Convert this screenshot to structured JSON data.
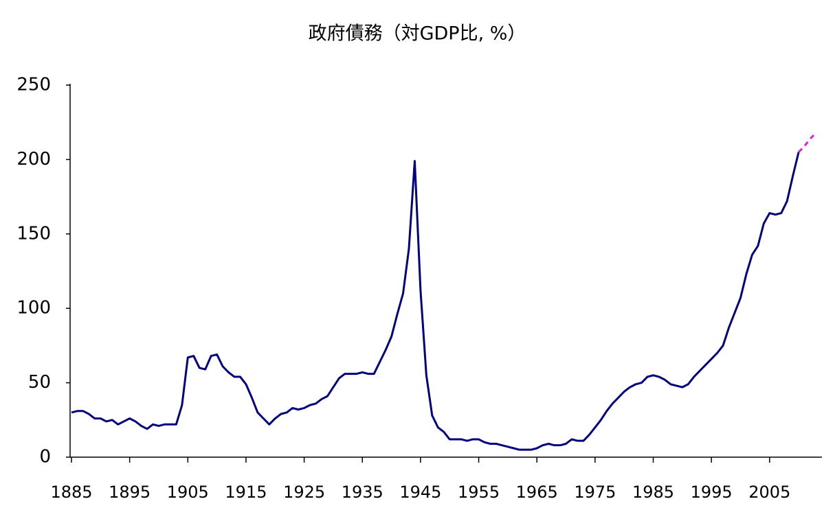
{
  "chart_data": {
    "type": "line",
    "title": "政府債務（対GDP比, %）",
    "xlim": [
      1885,
      2014
    ],
    "xticks": [
      1885,
      1895,
      1905,
      1915,
      1925,
      1935,
      1945,
      1955,
      1965,
      1975,
      1985,
      1995,
      2005
    ],
    "ylim": [
      0,
      250
    ],
    "yticks": [
      0,
      50,
      100,
      150,
      200,
      250
    ],
    "grid": false,
    "series": [
      {
        "color": "#000080",
        "line_style": "solid",
        "x": [
          1885,
          1886,
          1887,
          1888,
          1889,
          1890,
          1891,
          1892,
          1893,
          1894,
          1895,
          1896,
          1897,
          1898,
          1899,
          1900,
          1901,
          1902,
          1903,
          1904,
          1905,
          1906,
          1907,
          1908,
          1909,
          1910,
          1911,
          1912,
          1913,
          1914,
          1915,
          1916,
          1917,
          1918,
          1919,
          1920,
          1921,
          1922,
          1923,
          1924,
          1925,
          1926,
          1927,
          1928,
          1929,
          1930,
          1931,
          1932,
          1933,
          1934,
          1935,
          1936,
          1937,
          1938,
          1939,
          1940,
          1941,
          1942,
          1943,
          1944,
          1945,
          1946,
          1947,
          1948,
          1949,
          1950,
          1951,
          1952,
          1953,
          1954,
          1955,
          1956,
          1957,
          1958,
          1959,
          1960,
          1961,
          1962,
          1963,
          1964,
          1965,
          1966,
          1967,
          1968,
          1969,
          1970,
          1971,
          1972,
          1973,
          1974,
          1975,
          1976,
          1977,
          1978,
          1979,
          1980,
          1981,
          1982,
          1983,
          1984,
          1985,
          1986,
          1987,
          1988,
          1989,
          1990,
          1991,
          1992,
          1993,
          1994,
          1995,
          1996,
          1997,
          1998,
          1999,
          2000,
          2001,
          2002,
          2003,
          2004,
          2005,
          2006,
          2007,
          2008,
          2009,
          2010
        ],
        "values": [
          30,
          31,
          31,
          29,
          26,
          26,
          24,
          25,
          22,
          24,
          26,
          24,
          21,
          19,
          22,
          21,
          22,
          22,
          22,
          35,
          67,
          68,
          60,
          59,
          68,
          69,
          61,
          57,
          54,
          54,
          49,
          40,
          30,
          26,
          22,
          26,
          29,
          30,
          33,
          32,
          33,
          35,
          36,
          39,
          41,
          47,
          53,
          56,
          56,
          56,
          57,
          56,
          56,
          64,
          72,
          81,
          96,
          110,
          140,
          199,
          112,
          55,
          28,
          20,
          17,
          12,
          12,
          12,
          11,
          12,
          12,
          10,
          9,
          9,
          8,
          7,
          6,
          5,
          5,
          5,
          6,
          8,
          9,
          8,
          8,
          9,
          12,
          11,
          11,
          15,
          20,
          25,
          31,
          36,
          40,
          44,
          47,
          49,
          50,
          54,
          55,
          54,
          52,
          49,
          48,
          47,
          49,
          54,
          58,
          62,
          66,
          70,
          75,
          87,
          97,
          107,
          123,
          136,
          142,
          157,
          164,
          163,
          164,
          172,
          189,
          205
        ]
      },
      {
        "color": "#e020e0",
        "line_style": "dashed",
        "x": [
          2010,
          2011,
          2012,
          2013
        ],
        "values": [
          205,
          209,
          214,
          218
        ]
      }
    ]
  }
}
